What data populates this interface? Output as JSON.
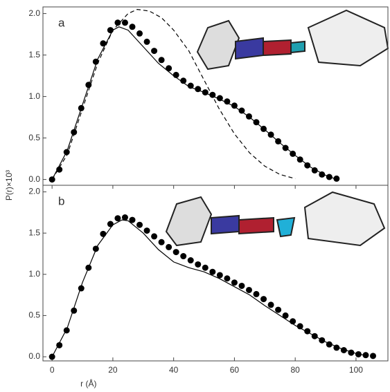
{
  "chart_data": [
    {
      "type": "line",
      "panel": "a",
      "y_label": "P(r)×10³",
      "xlim": [
        -3,
        110.5
      ],
      "ylim": [
        -0.07,
        2.08
      ],
      "yticks": [
        {
          "value": 0,
          "label": "0.0"
        },
        0.5,
        {
          "value": 1,
          "label": "1.0"
        },
        1.5,
        {
          "value": 2,
          "label": "2.0"
        }
      ],
      "series": [
        {
          "style": "dots",
          "color": "#000",
          "x": [
            0,
            2.4,
            4.8,
            7.2,
            9.6,
            12,
            14.4,
            16.8,
            19.2,
            21.6,
            24,
            26.4,
            28.8,
            31.2,
            33.6,
            36,
            38.4,
            40.8,
            43.2,
            45.6,
            48,
            50.4,
            52.8,
            55.2,
            57.6,
            60,
            62.4,
            64.8,
            67.2,
            69.6,
            72,
            74.4,
            76.8,
            79.2,
            81.6,
            84,
            86.4,
            88.8,
            91.2,
            93.6
          ],
          "values": [
            0,
            0.12,
            0.33,
            0.57,
            0.86,
            1.14,
            1.42,
            1.64,
            1.8,
            1.89,
            1.89,
            1.84,
            1.76,
            1.66,
            1.55,
            1.44,
            1.34,
            1.26,
            1.19,
            1.13,
            1.09,
            1.05,
            1.02,
            0.98,
            0.94,
            0.89,
            0.83,
            0.76,
            0.69,
            0.61,
            0.54,
            0.46,
            0.38,
            0.31,
            0.24,
            0.17,
            0.11,
            0.06,
            0.03,
            0.01
          ]
        },
        {
          "style": "solid",
          "color": "#000",
          "x": [
            0,
            5,
            10,
            15,
            20,
            22,
            25,
            30,
            35,
            40,
            45,
            50,
            55,
            60,
            65,
            70,
            75,
            80,
            85,
            90,
            93
          ],
          "values": [
            0,
            0.35,
            0.9,
            1.45,
            1.8,
            1.84,
            1.8,
            1.6,
            1.4,
            1.25,
            1.12,
            1.05,
            0.97,
            0.88,
            0.75,
            0.6,
            0.44,
            0.29,
            0.15,
            0.05,
            0.01
          ]
        },
        {
          "style": "dashed",
          "color": "#000",
          "x": [
            0,
            5,
            10,
            15,
            20,
            25,
            28,
            32,
            36,
            40,
            45,
            50,
            55,
            60,
            65,
            70,
            75,
            80
          ],
          "values": [
            0,
            0.3,
            0.85,
            1.4,
            1.8,
            2.0,
            2.05,
            2.03,
            1.95,
            1.8,
            1.55,
            1.2,
            0.85,
            0.55,
            0.32,
            0.16,
            0.06,
            0.01
          ]
        }
      ]
    },
    {
      "type": "line",
      "panel": "b",
      "x_label": "r (Å)",
      "xlim": [
        -3,
        110.5
      ],
      "ylim": [
        -0.05,
        2.08
      ],
      "xticks": [
        0,
        20,
        40,
        60,
        80,
        100
      ],
      "yticks": [
        {
          "value": 0,
          "label": "0.0"
        },
        0.5,
        {
          "value": 1,
          "label": "1.0"
        },
        1.5,
        {
          "value": 2,
          "label": "2.0"
        }
      ],
      "series": [
        {
          "style": "dots",
          "color": "#000",
          "x": [
            0,
            2.4,
            4.8,
            7.2,
            9.6,
            12,
            14.4,
            16.8,
            19.2,
            21.6,
            24,
            26.4,
            28.8,
            31.2,
            33.6,
            36,
            38.4,
            40.8,
            43.2,
            45.6,
            48,
            50.4,
            52.8,
            55.2,
            57.6,
            60,
            62.4,
            64.8,
            67.2,
            69.6,
            72,
            74.4,
            76.8,
            79.2,
            81.6,
            84,
            86.4,
            88.8,
            91.2,
            93.6,
            96,
            98.4,
            100.8,
            103.2,
            105.6
          ],
          "values": [
            0,
            0.14,
            0.32,
            0.56,
            0.83,
            1.08,
            1.31,
            1.49,
            1.61,
            1.68,
            1.69,
            1.66,
            1.6,
            1.53,
            1.46,
            1.39,
            1.33,
            1.27,
            1.22,
            1.17,
            1.12,
            1.08,
            1.03,
            0.99,
            0.95,
            0.9,
            0.86,
            0.81,
            0.76,
            0.7,
            0.63,
            0.57,
            0.5,
            0.43,
            0.37,
            0.31,
            0.25,
            0.2,
            0.15,
            0.11,
            0.08,
            0.05,
            0.03,
            0.02,
            0.01
          ]
        },
        {
          "style": "solid",
          "color": "#000",
          "x": [
            0,
            5,
            10,
            15,
            20,
            23,
            25,
            30,
            35,
            40,
            45,
            50,
            55,
            60,
            65,
            70,
            75,
            80,
            85,
            90,
            95,
            100,
            104
          ],
          "values": [
            0,
            0.35,
            0.9,
            1.35,
            1.6,
            1.66,
            1.65,
            1.5,
            1.3,
            1.15,
            1.08,
            1.03,
            0.95,
            0.85,
            0.75,
            0.62,
            0.5,
            0.38,
            0.28,
            0.18,
            0.1,
            0.04,
            0.01
          ]
        }
      ]
    }
  ]
}
